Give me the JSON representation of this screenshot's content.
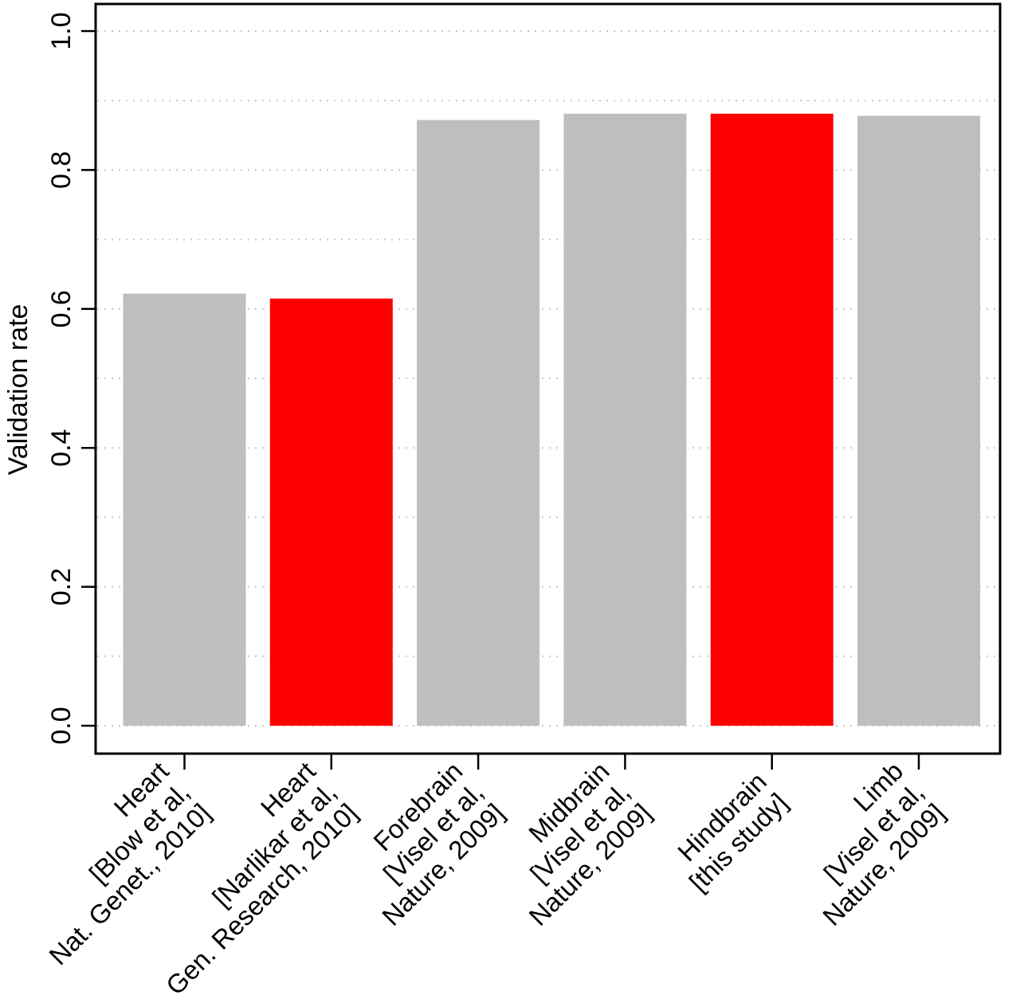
{
  "chart_data": {
    "type": "bar",
    "title": "",
    "xlabel": "",
    "ylabel": "Validation rate",
    "ylim": [
      0,
      1.0
    ],
    "yticks": [
      "0.0",
      "0.2",
      "0.4",
      "0.6",
      "0.8",
      "1.0"
    ],
    "grid": "horizontal dotted",
    "categories": [
      {
        "lines": [
          "Heart",
          "[Blow et al,",
          "Nat. Genet., 2010]"
        ]
      },
      {
        "lines": [
          "Heart",
          "[Narlikar et al,",
          "Gen. Research, 2010]"
        ]
      },
      {
        "lines": [
          "Forebrain",
          "[Visel et al,",
          "Nature, 2009]"
        ]
      },
      {
        "lines": [
          "Midbrain",
          "[Visel et al,",
          "Nature, 2009]"
        ]
      },
      {
        "lines": [
          "Hindbrain",
          "[this study]"
        ]
      },
      {
        "lines": [
          "Limb",
          "[Visel et al,",
          "Nature, 2009]"
        ]
      }
    ],
    "values": [
      0.622,
      0.615,
      0.872,
      0.881,
      0.881,
      0.878
    ],
    "bar_colors": [
      "#bebebe",
      "#ff0000",
      "#bebebe",
      "#bebebe",
      "#ff0000",
      "#bebebe"
    ]
  }
}
